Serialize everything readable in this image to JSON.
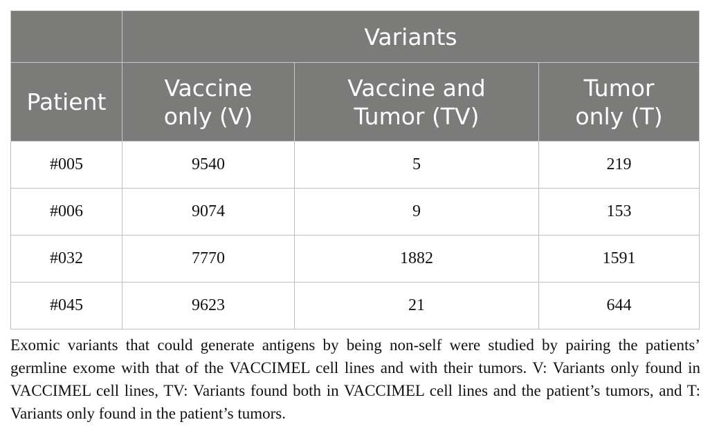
{
  "table": {
    "group_header": "Variants",
    "columns": [
      "Patient",
      "Vaccine only (V)",
      "Vaccine and Tumor (TV)",
      "Tumor only (T)"
    ],
    "rows": [
      [
        "#005",
        "9540",
        "5",
        "219"
      ],
      [
        "#006",
        "9074",
        "9",
        "153"
      ],
      [
        "#032",
        "7770",
        "1882",
        "1591"
      ],
      [
        "#045",
        "9623",
        "21",
        "644"
      ]
    ]
  },
  "caption": "Exomic variants that could generate antigens by being non-self were studied by pairing the patients’ germline exome with that of the VACCIMEL cell lines and with their tumors. V: Variants only found in VACCIMEL cell lines, TV: Variants found both in VACCIMEL cell lines and the patient’s tumors, and T: Variants only found in the patient’s tumors.",
  "colors": {
    "header_bg": "#7b7b79",
    "header_text": "#ffffff",
    "grid_line": "#bdbdbd",
    "body_text": "#111111"
  }
}
